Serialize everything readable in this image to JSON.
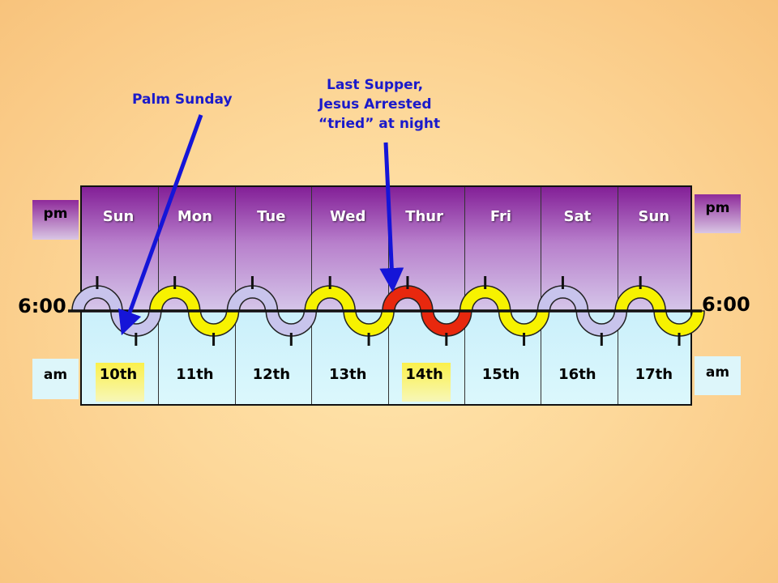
{
  "callouts": {
    "palm_sunday": "Palm Sunday",
    "last_supper_line1": "Last Supper,",
    "last_supper_line2": "Jesus Arrested",
    "last_supper_line3": "“tried” at night"
  },
  "time_labels": {
    "left": "6:00",
    "right": "6:00"
  },
  "side_labels": {
    "pm_left": "pm",
    "pm_right": "pm",
    "am_left": "am",
    "am_right": "am"
  },
  "days": [
    "Sun",
    "Mon",
    "Tue",
    "Wed",
    "Thur",
    "Fri",
    "Sat",
    "Sun"
  ],
  "dates": [
    "10th",
    "11th",
    "12th",
    "13th",
    "14th",
    "15th",
    "16th",
    "17th"
  ],
  "highlighted_dates": [
    "10th",
    "14th"
  ],
  "wave_colors": [
    "#c8c4ec",
    "#f7f200",
    "#c8c4ec",
    "#f7f200",
    "#e8280e",
    "#f7f200",
    "#c8c4ec",
    "#f7f200"
  ],
  "colors": {
    "callout_text": "#1a1acb",
    "arrow": "#1515d8",
    "date_highlight": "#fbf04b"
  }
}
